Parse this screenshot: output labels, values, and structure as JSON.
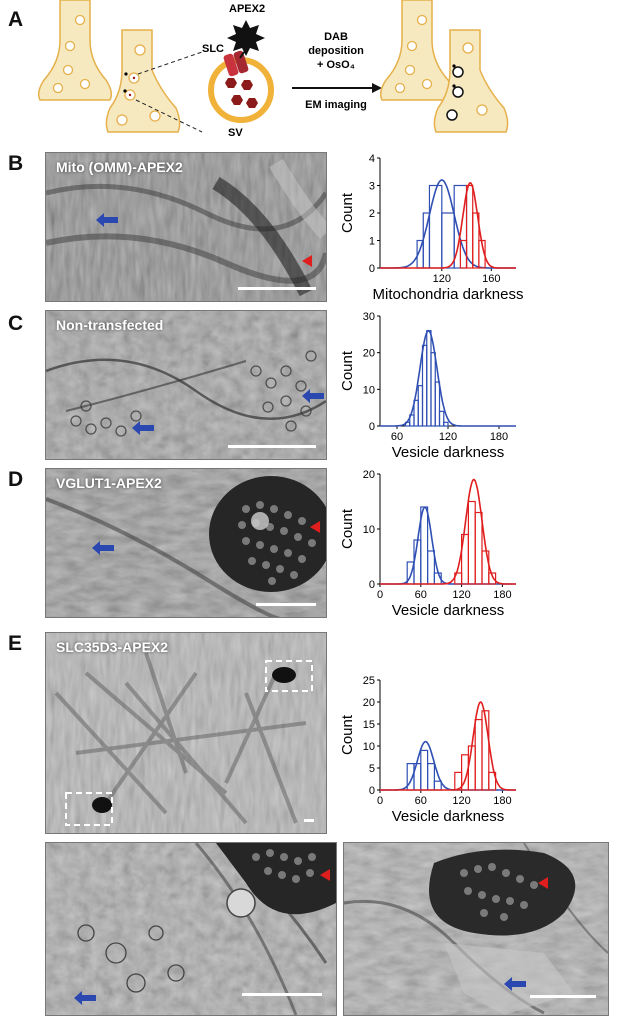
{
  "panel_letters": {
    "a": "A",
    "b": "B",
    "c": "C",
    "d": "D",
    "e": "E"
  },
  "schematic": {
    "apex2": "APEX2",
    "slc": "SLC",
    "sv": "SV",
    "step_line1": "DAB",
    "step_line2": "deposition",
    "step_line3": "+ OsO₄",
    "step_line4": "EM imaging"
  },
  "micrographs": {
    "b": "Mito (OMM)-APEX2",
    "c": "Non-transfected",
    "d": "VGLUT1-APEX2",
    "e": "SLC35D3-APEX2"
  },
  "colors": {
    "control": "#2f4fb3",
    "labeled": "#e01e1e",
    "arrow": "#2b48b0",
    "arrowhead": "#e01e1e"
  },
  "chart_data": [
    {
      "id": "B",
      "type": "histogram",
      "xlabel": "Mitochondria darkness",
      "ylabel": "Count",
      "xlim": [
        70,
        180
      ],
      "ylim": [
        0,
        4
      ],
      "xticks": [
        120,
        160
      ],
      "yticks": [
        0,
        1,
        2,
        3,
        4
      ],
      "series": [
        {
          "color": "#2f4fb3",
          "bins": [
            [
              100,
              105,
              1
            ],
            [
              105,
              110,
              2
            ],
            [
              110,
              120,
              3
            ],
            [
              120,
              130,
              2
            ],
            [
              130,
              140,
              3
            ]
          ],
          "fit": {
            "mean": 120,
            "sd": 10,
            "peak": 3.2
          }
        },
        {
          "color": "#e01e1e",
          "bins": [
            [
              135,
              140,
              1
            ],
            [
              140,
              145,
              3
            ],
            [
              145,
              150,
              2
            ],
            [
              150,
              155,
              1
            ]
          ],
          "fit": {
            "mean": 143,
            "sd": 6,
            "peak": 3.1
          }
        }
      ]
    },
    {
      "id": "C",
      "type": "histogram",
      "xlabel": "Vesicle darkness",
      "ylabel": "Count",
      "xlim": [
        40,
        200
      ],
      "ylim": [
        0,
        30
      ],
      "xticks": [
        60,
        120,
        180
      ],
      "yticks": [
        0,
        10,
        20,
        30
      ],
      "series": [
        {
          "color": "#2f4fb3",
          "bins": [
            [
              70,
              75,
              1
            ],
            [
              75,
              80,
              3
            ],
            [
              80,
              85,
              7
            ],
            [
              85,
              90,
              11
            ],
            [
              90,
              95,
              22
            ],
            [
              95,
              100,
              26
            ],
            [
              100,
              105,
              20
            ],
            [
              105,
              110,
              12
            ],
            [
              110,
              115,
              4
            ],
            [
              115,
              120,
              1
            ]
          ],
          "fit": {
            "mean": 97,
            "sd": 10,
            "peak": 26
          }
        }
      ]
    },
    {
      "id": "D",
      "type": "histogram",
      "xlabel": "Vesicle darkness",
      "ylabel": "Count",
      "xlim": [
        0,
        200
      ],
      "ylim": [
        0,
        20
      ],
      "xticks": [
        0,
        60,
        120,
        180
      ],
      "yticks": [
        0,
        10,
        20
      ],
      "series": [
        {
          "color": "#2f4fb3",
          "bins": [
            [
              40,
              50,
              4
            ],
            [
              50,
              60,
              8
            ],
            [
              60,
              70,
              14
            ],
            [
              70,
              80,
              6
            ],
            [
              80,
              90,
              2
            ]
          ],
          "fit": {
            "mean": 66,
            "sd": 10,
            "peak": 14
          }
        },
        {
          "color": "#e01e1e",
          "bins": [
            [
              110,
              120,
              2
            ],
            [
              120,
              130,
              9
            ],
            [
              130,
              140,
              15
            ],
            [
              140,
              150,
              13
            ],
            [
              150,
              160,
              6
            ],
            [
              160,
              170,
              2
            ]
          ],
          "fit": {
            "mean": 138,
            "sd": 12,
            "peak": 19
          }
        }
      ]
    },
    {
      "id": "E",
      "type": "histogram",
      "xlabel": "Vesicle darkness",
      "ylabel": "Count",
      "xlim": [
        0,
        200
      ],
      "ylim": [
        0,
        25
      ],
      "xticks": [
        0,
        60,
        120,
        180
      ],
      "yticks": [
        0,
        5,
        10,
        15,
        20,
        25
      ],
      "series": [
        {
          "color": "#2f4fb3",
          "bins": [
            [
              40,
              50,
              6
            ],
            [
              50,
              60,
              6
            ],
            [
              60,
              70,
              9
            ],
            [
              70,
              80,
              6
            ],
            [
              80,
              90,
              2
            ]
          ],
          "fit": {
            "mean": 67,
            "sd": 12,
            "peak": 11
          }
        },
        {
          "color": "#e01e1e",
          "bins": [
            [
              110,
              120,
              4
            ],
            [
              120,
              130,
              8
            ],
            [
              130,
              140,
              10
            ],
            [
              140,
              150,
              16
            ],
            [
              150,
              160,
              18
            ],
            [
              160,
              170,
              4
            ]
          ],
          "fit": {
            "mean": 148,
            "sd": 11,
            "peak": 20
          }
        }
      ]
    }
  ]
}
